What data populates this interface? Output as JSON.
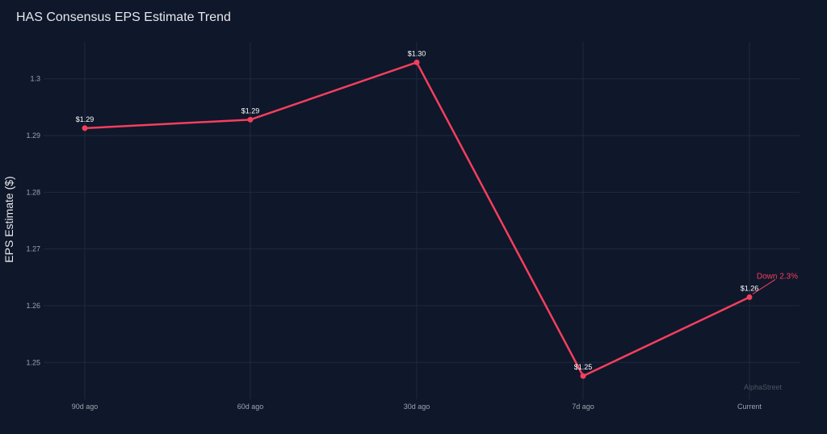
{
  "colors": {
    "background": "#0f172a",
    "series": "#f43f5e",
    "grid": "#1f2a3e",
    "text": "#e5e7eb",
    "tick": "#9ca3af",
    "watermark": "#4b5563"
  },
  "watermark": "AlphaStreet",
  "chart_data": {
    "type": "line",
    "title": "HAS Consensus EPS Estimate Trend",
    "xlabel": "",
    "ylabel": "EPS Estimate ($)",
    "categories": [
      "90d ago",
      "60d ago",
      "30d ago",
      "7d ago",
      "Current"
    ],
    "series": [
      {
        "values": [
          1.2913,
          1.2928,
          1.3029,
          1.2476,
          1.2615
        ],
        "labels": [
          "$1.29",
          "$1.29",
          "$1.30",
          "$1.25",
          "$1.26"
        ]
      }
    ],
    "ylim": [
      1.2435,
      1.3065
    ],
    "yticks": [
      1.25,
      1.26,
      1.27,
      1.28,
      1.29,
      1.3
    ],
    "ytick_labels": [
      "1.25",
      "1.26",
      "1.27",
      "1.28",
      "1.29",
      "1.3"
    ],
    "grid": true,
    "legend": "none",
    "annotation": {
      "text": "Down 2.3%",
      "category": "Current",
      "color": "#f43f5e"
    }
  }
}
